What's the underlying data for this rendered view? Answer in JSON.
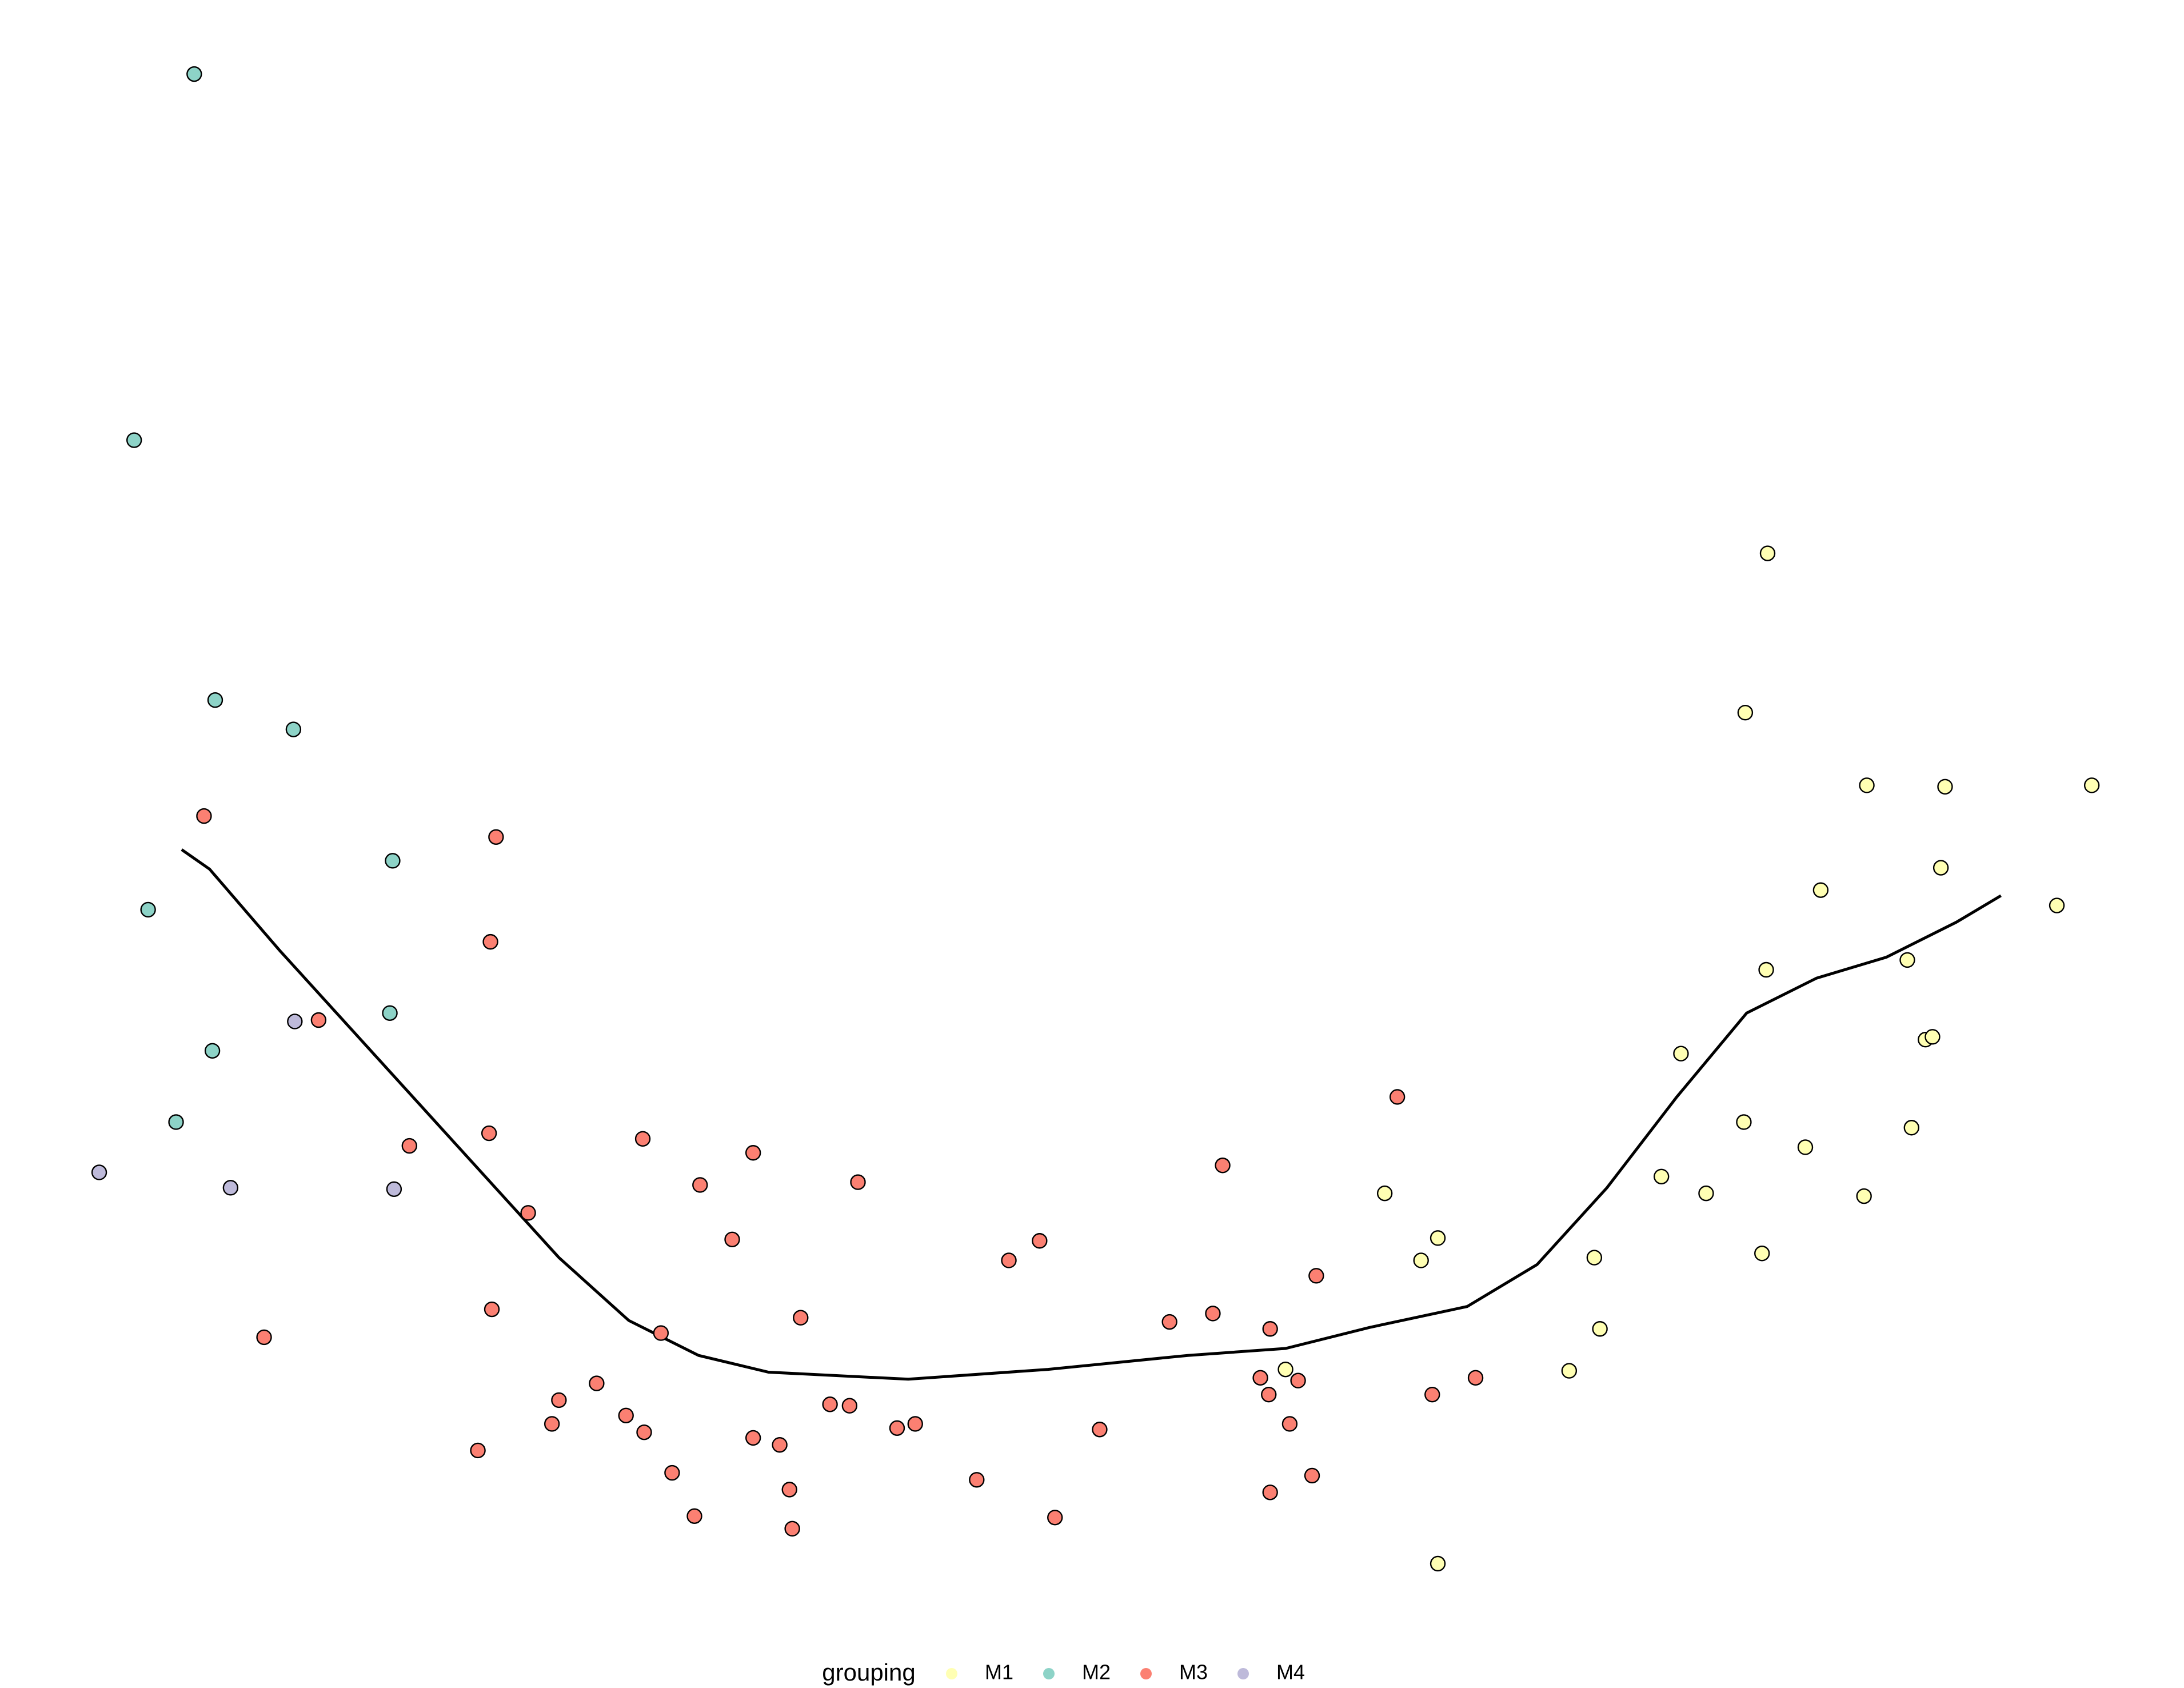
{
  "chart_data": {
    "type": "scatter",
    "xlim": [
      0,
      1563
    ],
    "ylim": [
      1208,
      0
    ],
    "legend_title": "grouping",
    "legend_position": "bottom",
    "series": [
      {
        "name": "M1",
        "color": "#ffffb3",
        "x": [
          1265,
          1249,
          1336,
          1392,
          1497,
          1389,
          1303,
          1472,
          1264,
          1365,
          1378,
          1383,
          1203,
          1248,
          1292,
          1368,
          991,
          1189,
          1221,
          1334,
          1029,
          1017,
          1141,
          1261,
          1145,
          920,
          1123,
          1029
        ],
        "values": [
          396,
          510,
          562,
          563,
          562,
          621,
          637,
          648,
          694,
          687,
          744,
          742,
          754,
          803,
          821,
          807,
          854,
          842,
          854,
          856,
          886,
          902,
          900,
          897,
          951,
          980,
          981,
          1119
        ]
      },
      {
        "name": "M2",
        "color": "#8dd3c7",
        "x": [
          139,
          96,
          154,
          210,
          281,
          106,
          279,
          152,
          126
        ],
        "values": [
          53,
          315,
          501,
          522,
          616,
          651,
          725,
          752,
          803
        ]
      },
      {
        "name": "M3",
        "color": "#fb8072",
        "x": [
          146,
          355,
          351,
          228,
          350,
          293,
          460,
          539,
          501,
          614,
          378,
          524,
          1000,
          875,
          744,
          722,
          942,
          352,
          573,
          189,
          473,
          837,
          868,
          909,
          902,
          929,
          908,
          1025,
          1056,
          400,
          427,
          448,
          395,
          461,
          594,
          608,
          642,
          655,
          787,
          923,
          539,
          558,
          342,
          481,
          565,
          699,
          939,
          909,
          497,
          755,
          567
        ],
        "values": [
          584,
          599,
          674,
          730,
          811,
          820,
          815,
          825,
          848,
          846,
          868,
          887,
          785,
          834,
          888,
          902,
          913,
          937,
          943,
          957,
          954,
          946,
          940,
          951,
          986,
          988,
          998,
          998,
          986,
          1002,
          990,
          1013,
          1019,
          1025,
          1005,
          1006,
          1022,
          1019,
          1023,
          1019,
          1029,
          1034,
          1038,
          1054,
          1066,
          1059,
          1056,
          1068,
          1085,
          1086,
          1094
        ]
      },
      {
        "name": "M4",
        "color": "#bebada",
        "x": [
          211,
          71,
          165,
          282
        ],
        "values": [
          731,
          839,
          850,
          851
        ]
      }
    ],
    "trend": {
      "color": "#000000",
      "x": [
        130,
        150,
        200,
        300,
        400,
        450,
        500,
        550,
        650,
        750,
        850,
        920,
        980,
        1050,
        1100,
        1150,
        1200,
        1250,
        1300,
        1350,
        1400,
        1432
      ],
      "values": [
        608,
        622,
        680,
        790,
        900,
        945,
        970,
        982,
        987,
        980,
        970,
        965,
        950,
        935,
        905,
        850,
        785,
        725,
        700,
        685,
        660,
        641
      ]
    }
  }
}
